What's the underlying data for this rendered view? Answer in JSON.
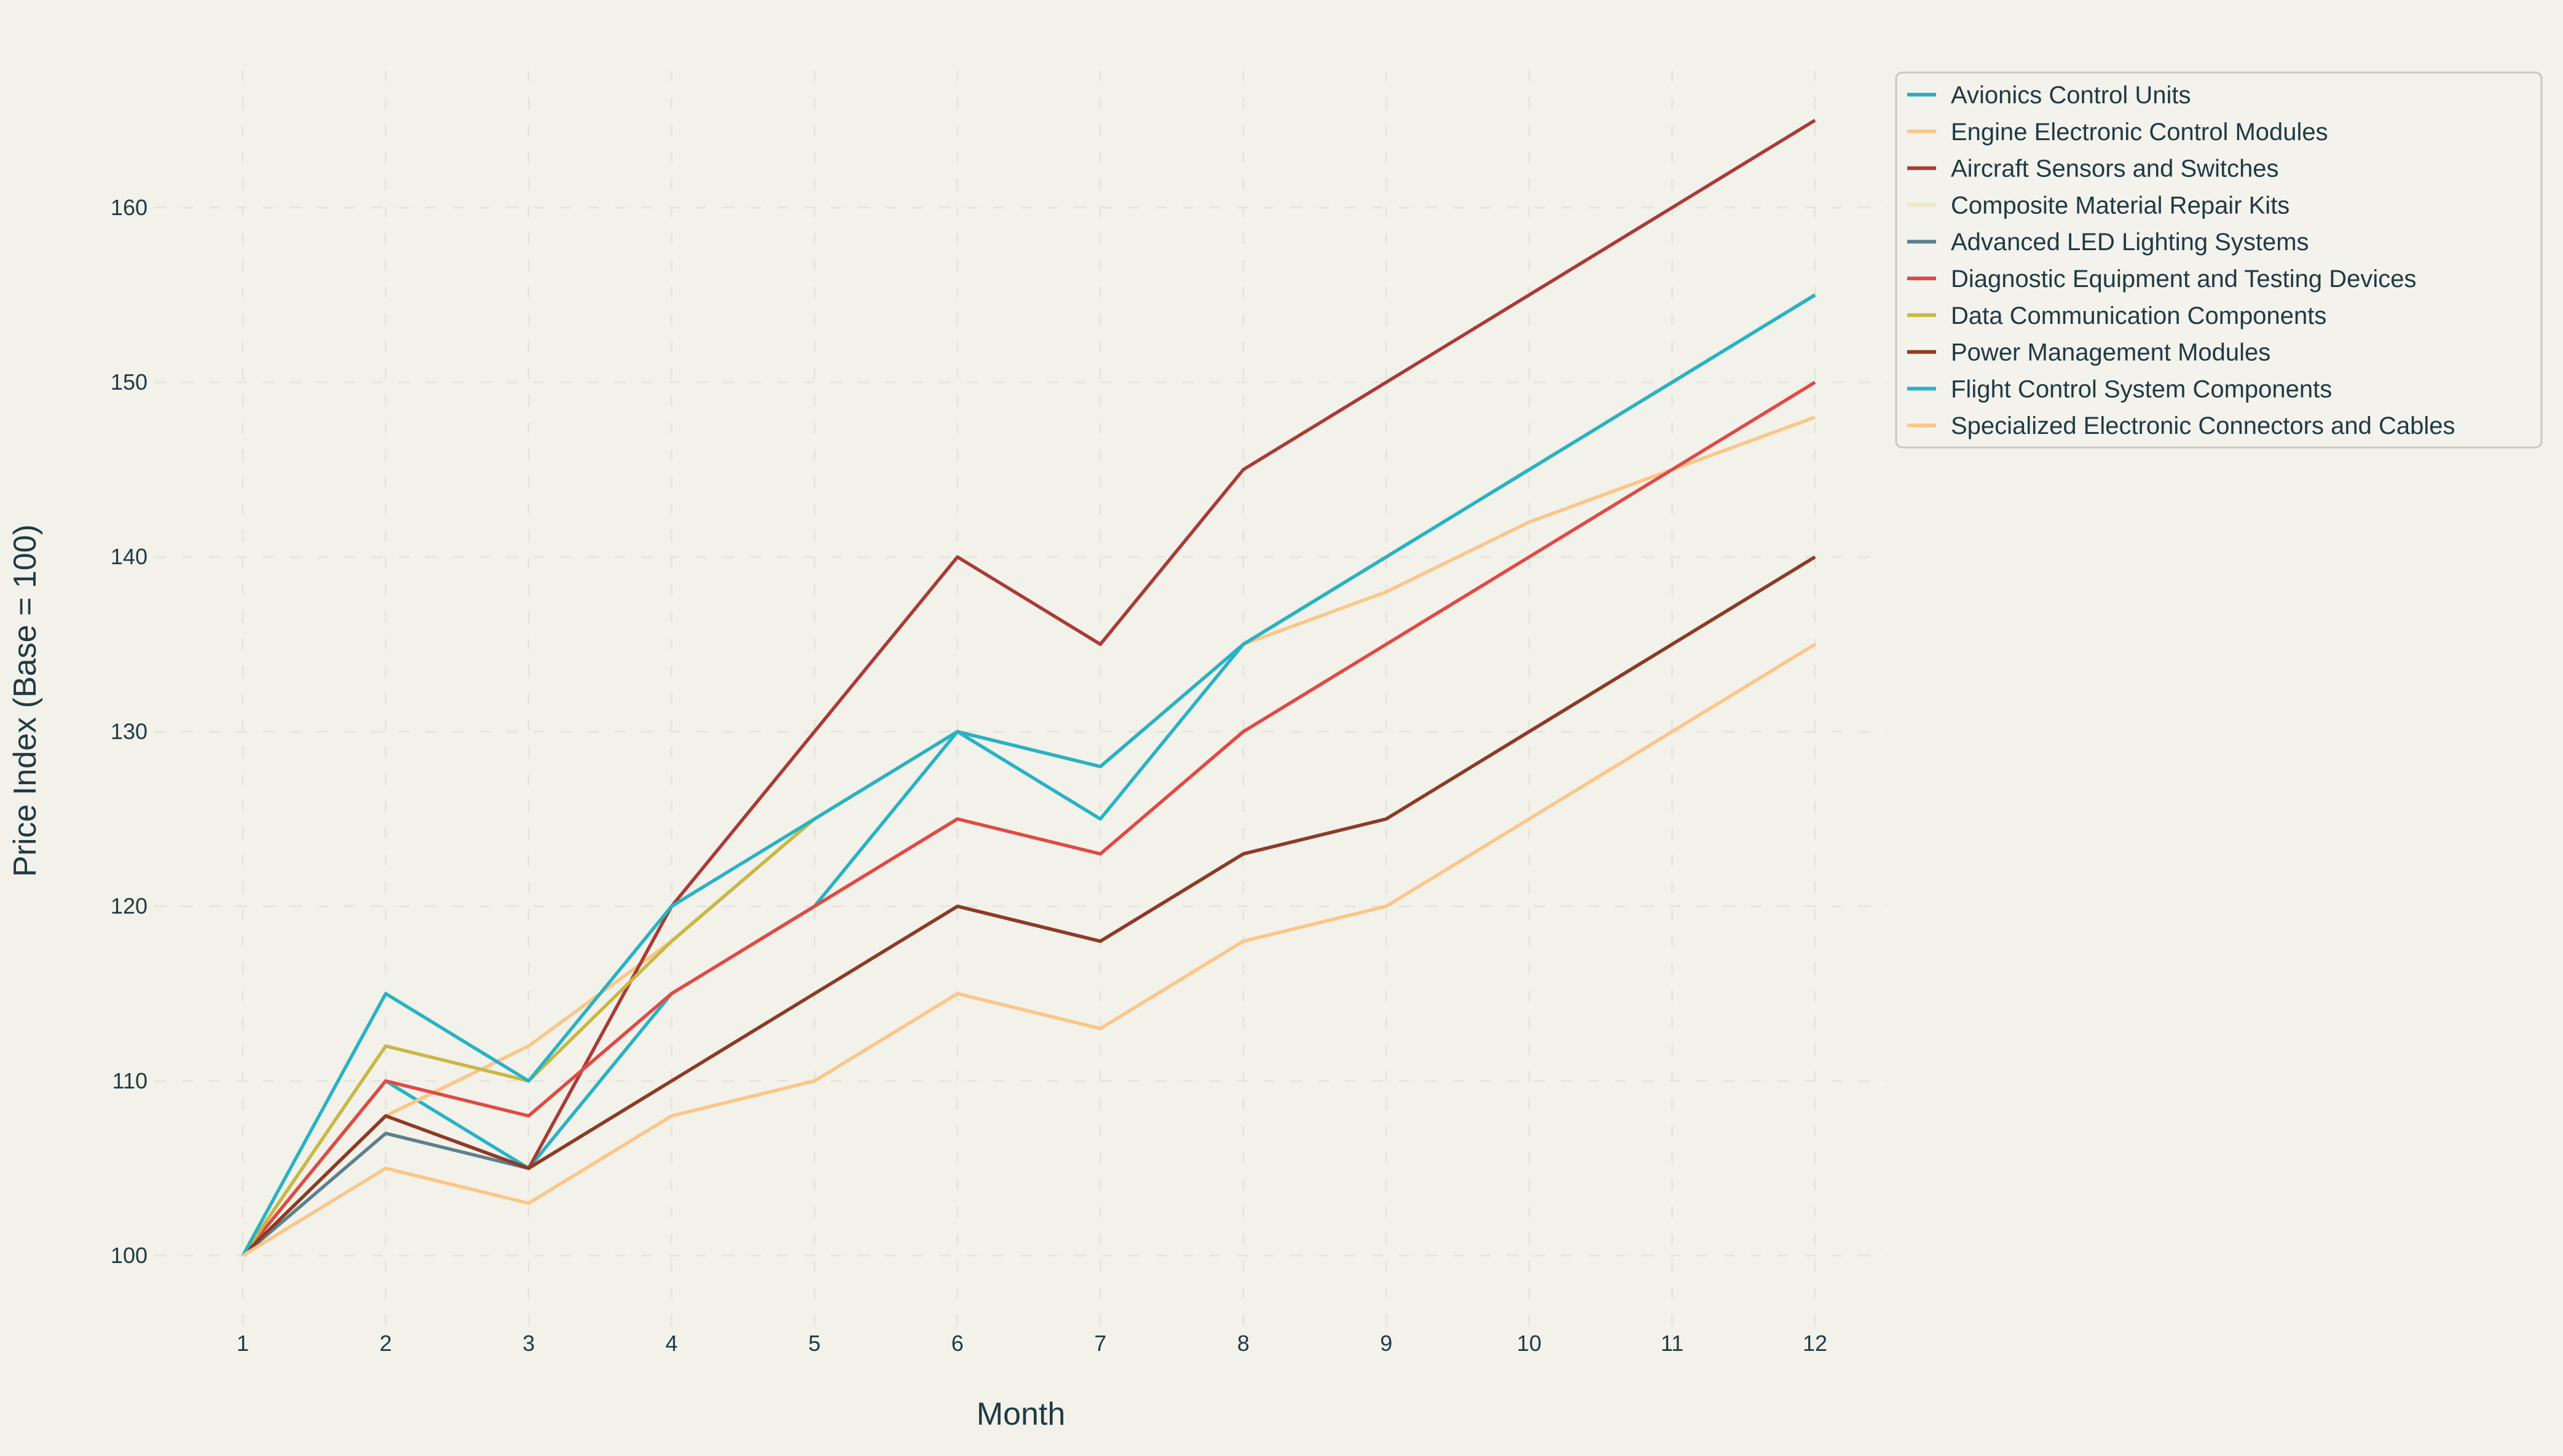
{
  "chart_data": {
    "type": "line",
    "title": "",
    "xlabel": "Month",
    "ylabel": "Price Index (Base = 100)",
    "x": [
      1,
      2,
      3,
      4,
      5,
      6,
      7,
      8,
      9,
      10,
      11,
      12
    ],
    "xticks": [
      1,
      2,
      3,
      4,
      5,
      6,
      7,
      8,
      9,
      10,
      11,
      12
    ],
    "yticks": [
      100,
      110,
      120,
      130,
      140,
      150,
      160
    ],
    "xlim": [
      0.39,
      12.5
    ],
    "ylim": [
      95.8,
      167.9
    ],
    "grid": true,
    "legend_position": "upper right",
    "series": [
      {
        "name": "Avionics Control Units",
        "color": "#28b2c5",
        "values": [
          100,
          110,
          105,
          115,
          120,
          130,
          125,
          135,
          140,
          145,
          150,
          155
        ]
      },
      {
        "name": "Engine Electronic Control Modules",
        "color": "#fbc689",
        "values": [
          100,
          108,
          112,
          118,
          125,
          130,
          128,
          135,
          138,
          142,
          145,
          148
        ]
      },
      {
        "name": "Aircraft Sensors and Switches",
        "color": "#a93b36",
        "values": [
          100,
          108,
          105,
          120,
          130,
          140,
          135,
          145,
          150,
          155,
          160,
          165
        ]
      },
      {
        "name": "Composite Material Repair Kits",
        "color": "#ece9c5",
        "values": [
          100,
          110,
          108,
          115,
          120,
          125,
          123,
          130,
          135,
          140,
          145,
          150
        ]
      },
      {
        "name": "Advanced LED Lighting Systems",
        "color": "#5d808d",
        "values": [
          100,
          107,
          105,
          110,
          115,
          120,
          118,
          123,
          125,
          130,
          135,
          140
        ]
      },
      {
        "name": "Diagnostic Equipment and Testing Devices",
        "color": "#e04a45",
        "values": [
          100,
          110,
          108,
          115,
          120,
          125,
          123,
          130,
          135,
          140,
          145,
          150
        ]
      },
      {
        "name": "Data Communication Components",
        "color": "#c8b843",
        "values": [
          100,
          112,
          110,
          118,
          125,
          130,
          128,
          135,
          140,
          145,
          150,
          155
        ]
      },
      {
        "name": "Power Management Modules",
        "color": "#8d3b25",
        "values": [
          100,
          108,
          105,
          110,
          115,
          120,
          118,
          123,
          125,
          130,
          135,
          140
        ]
      },
      {
        "name": "Flight Control System Components",
        "color": "#28b2c5",
        "values": [
          100,
          115,
          110,
          120,
          125,
          130,
          128,
          135,
          140,
          145,
          150,
          155
        ]
      },
      {
        "name": "Specialized Electronic Connectors and Cables",
        "color": "#fbc689",
        "values": [
          100,
          105,
          103,
          108,
          110,
          115,
          113,
          118,
          120,
          125,
          130,
          135
        ]
      }
    ]
  },
  "colors": {
    "background": "#f2f1ea",
    "grid": "#e4e3da",
    "text": "#203a42",
    "legend_border": "#c8c8c2",
    "legend_background": "#f3f2ec"
  }
}
